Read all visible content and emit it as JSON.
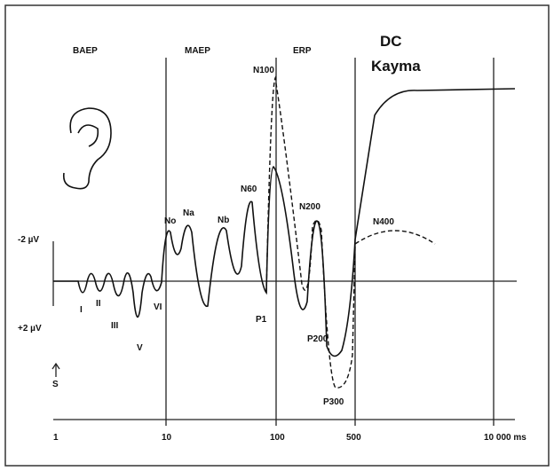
{
  "regions": [
    "BAEP",
    "MAEP",
    "ERP"
  ],
  "dc": {
    "line1": "DC",
    "line2": "Kayma"
  },
  "peaks": {
    "N100": "N100",
    "N60": "N60",
    "N200": "N200",
    "N400": "N400",
    "No": "No",
    "Na": "Na",
    "Nb": "Nb",
    "I": "I",
    "II": "II",
    "III": "III",
    "V": "V",
    "VI": "VI",
    "P1": "P1",
    "P200": "P200",
    "P300": "P300"
  },
  "amplitude": {
    "neg": "-2 µV",
    "pos": "+2 µV"
  },
  "s_label": "S",
  "x_labels": [
    "1",
    "10",
    "100",
    "500",
    "10 000 ms"
  ]
}
